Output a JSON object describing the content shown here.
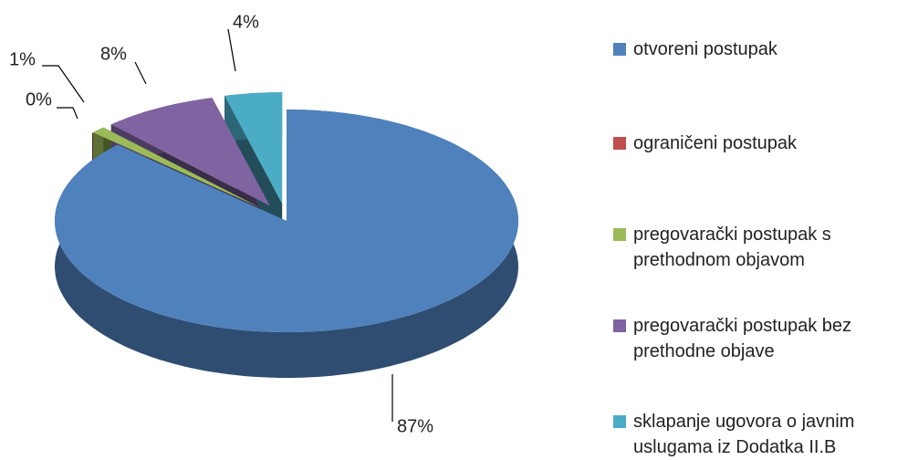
{
  "chart_data": {
    "type": "pie3d",
    "categories": [
      "otvoreni postupak",
      "ograničeni postupak",
      "pregovarački postupak s prethodnom objavom",
      "pregovarački postupak bez prethodne objave",
      "sklapanje ugovora o javnim uslugama iz Dodatka II.B"
    ],
    "values": [
      87,
      0,
      1,
      8,
      4
    ],
    "value_labels": [
      "87%",
      "0%",
      "1%",
      "8%",
      "4%"
    ],
    "colors": [
      "#4f81bd",
      "#c0504d",
      "#9bbb59",
      "#8064a2",
      "#4bacc6"
    ],
    "legend": "right"
  }
}
